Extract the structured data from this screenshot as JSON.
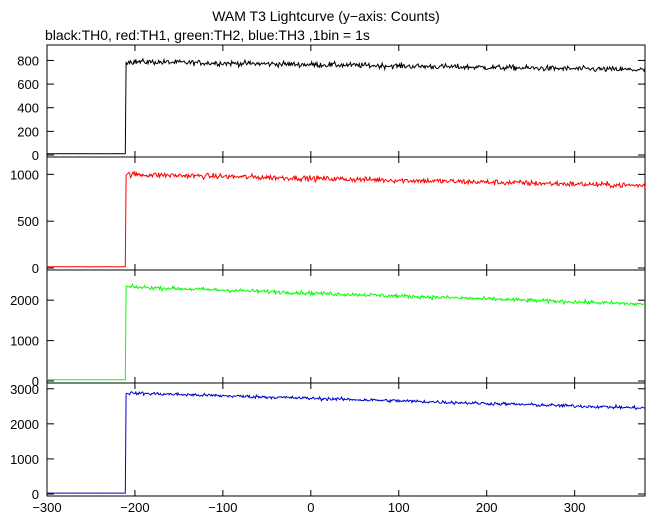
{
  "title": "WAM T3 Lightcurve (y−axis: Counts)",
  "subtitle": "black:TH0, red:TH1, green:TH2, blue:TH3 ,1bin = 1s",
  "chart_data": {
    "type": "line",
    "x_range": [
      -300,
      380
    ],
    "x_ticks": [
      -300,
      -200,
      -100,
      0,
      100,
      200,
      300
    ],
    "x_tick_labels": [
      "−300",
      "−200",
      "−100",
      "0",
      "100",
      "200",
      "300"
    ],
    "panels": [
      {
        "name": "TH0",
        "color": "#000000",
        "ylim": [
          0,
          880
        ],
        "y_ticks": [
          0,
          200,
          400,
          600,
          800
        ],
        "y_tick_labels": [
          "0",
          "200",
          "400",
          "600",
          "800"
        ],
        "pre_level": 10,
        "onset_x": -210,
        "post_start": 790,
        "post_end": 720,
        "noise": 22
      },
      {
        "name": "TH1",
        "color": "#ff0000",
        "ylim": [
          0,
          1100
        ],
        "y_ticks": [
          0,
          500,
          1000
        ],
        "y_tick_labels": [
          "0",
          "500",
          "1000"
        ],
        "pre_level": 12,
        "onset_x": -210,
        "post_start": 1000,
        "post_end": 880,
        "noise": 28
      },
      {
        "name": "TH2",
        "color": "#00ff00",
        "ylim": [
          0,
          2500
        ],
        "y_ticks": [
          0,
          1000,
          2000
        ],
        "y_tick_labels": [
          "0",
          "1000",
          "2000"
        ],
        "pre_level": 30,
        "onset_x": -210,
        "post_start": 2330,
        "post_end": 1900,
        "noise": 45
      },
      {
        "name": "TH3",
        "color": "#0000cc",
        "ylim": [
          0,
          3050
        ],
        "y_ticks": [
          0,
          1000,
          2000,
          3000
        ],
        "y_tick_labels": [
          "0",
          "1000",
          "2000",
          "3000"
        ],
        "pre_level": 25,
        "onset_x": -210,
        "post_start": 2880,
        "post_end": 2450,
        "noise": 45
      }
    ]
  }
}
